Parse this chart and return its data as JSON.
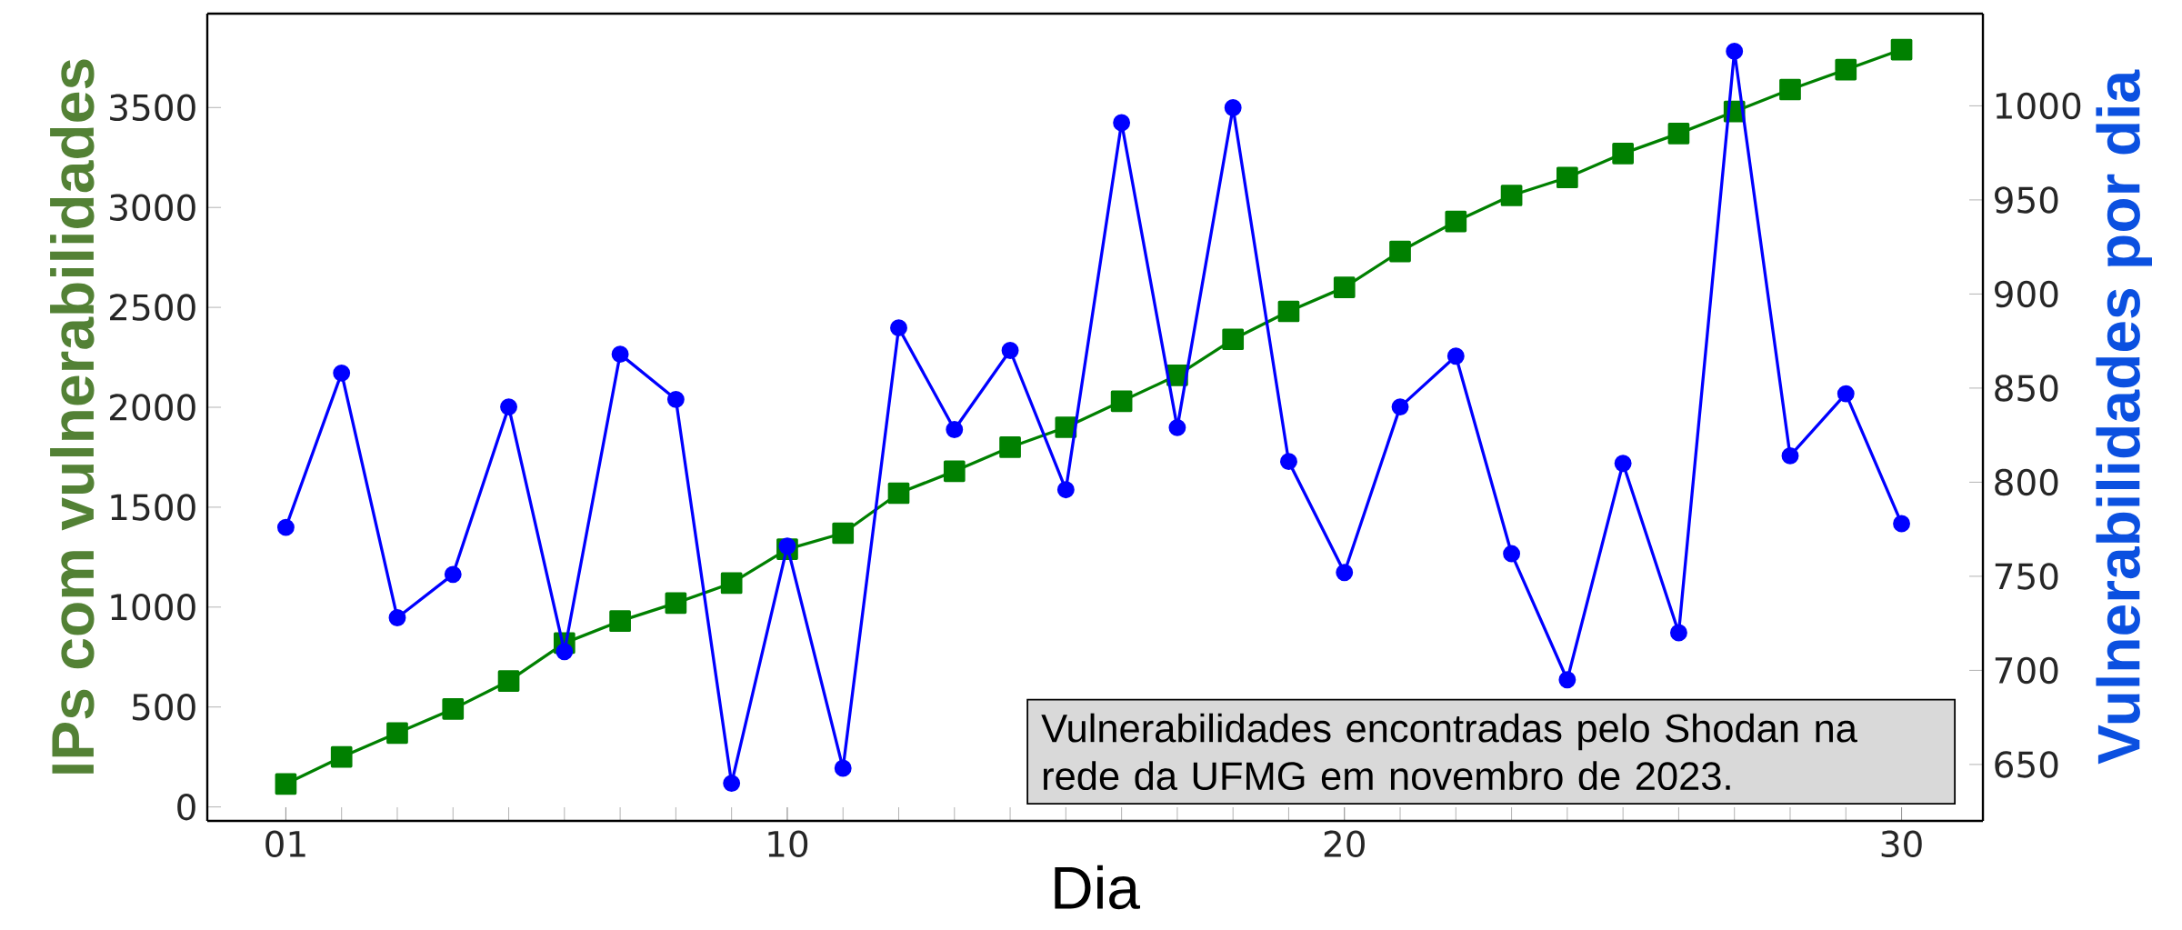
{
  "chart_data": {
    "type": "line",
    "xlabel": "Dia",
    "ylabel": "IPs com vulnerabilidades",
    "y2label": "Vulnerabilidades por dia",
    "x": [
      1,
      2,
      3,
      4,
      5,
      6,
      7,
      8,
      9,
      10,
      11,
      12,
      13,
      14,
      15,
      16,
      17,
      18,
      19,
      20,
      21,
      22,
      23,
      24,
      25,
      26,
      27,
      28,
      29,
      30
    ],
    "series": [
      {
        "color": "#008000",
        "marker": "square",
        "values": [
          115,
          250,
          370,
          490,
          630,
          820,
          930,
          1020,
          1120,
          1290,
          1370,
          1570,
          1680,
          1800,
          1900,
          2030,
          2160,
          2340,
          2480,
          2600,
          2780,
          2930,
          3060,
          3150,
          3270,
          3370,
          3480,
          3590,
          3690,
          3790
        ]
      },
      {
        "color": "#0000ff",
        "marker": "circle",
        "axis": "y2",
        "values": [
          776,
          858,
          728,
          751,
          840,
          710,
          868,
          844,
          640,
          766,
          648,
          882,
          828,
          870,
          796,
          991,
          829,
          999,
          811,
          752,
          840,
          867,
          762,
          695,
          810,
          720,
          1029,
          814,
          847,
          778
        ]
      }
    ],
    "xlim": [
      -0.41,
      31.46
    ],
    "xticks": [
      {
        "value": 1,
        "label": "01"
      },
      10,
      20,
      30
    ],
    "ylim": [
      -70,
      3970
    ],
    "yticks": [
      0,
      500,
      1000,
      1500,
      2000,
      2500,
      3000,
      3500
    ],
    "y2lim": [
      620,
      1049
    ],
    "y2ticks": [
      650,
      700,
      750,
      800,
      850,
      900,
      950,
      1000
    ],
    "annotations": [
      "Vulnerabilidades encontradas pelo Shodan na rede da UFMG em novembro de 2023."
    ],
    "grid": false,
    "line_style": "solid"
  }
}
